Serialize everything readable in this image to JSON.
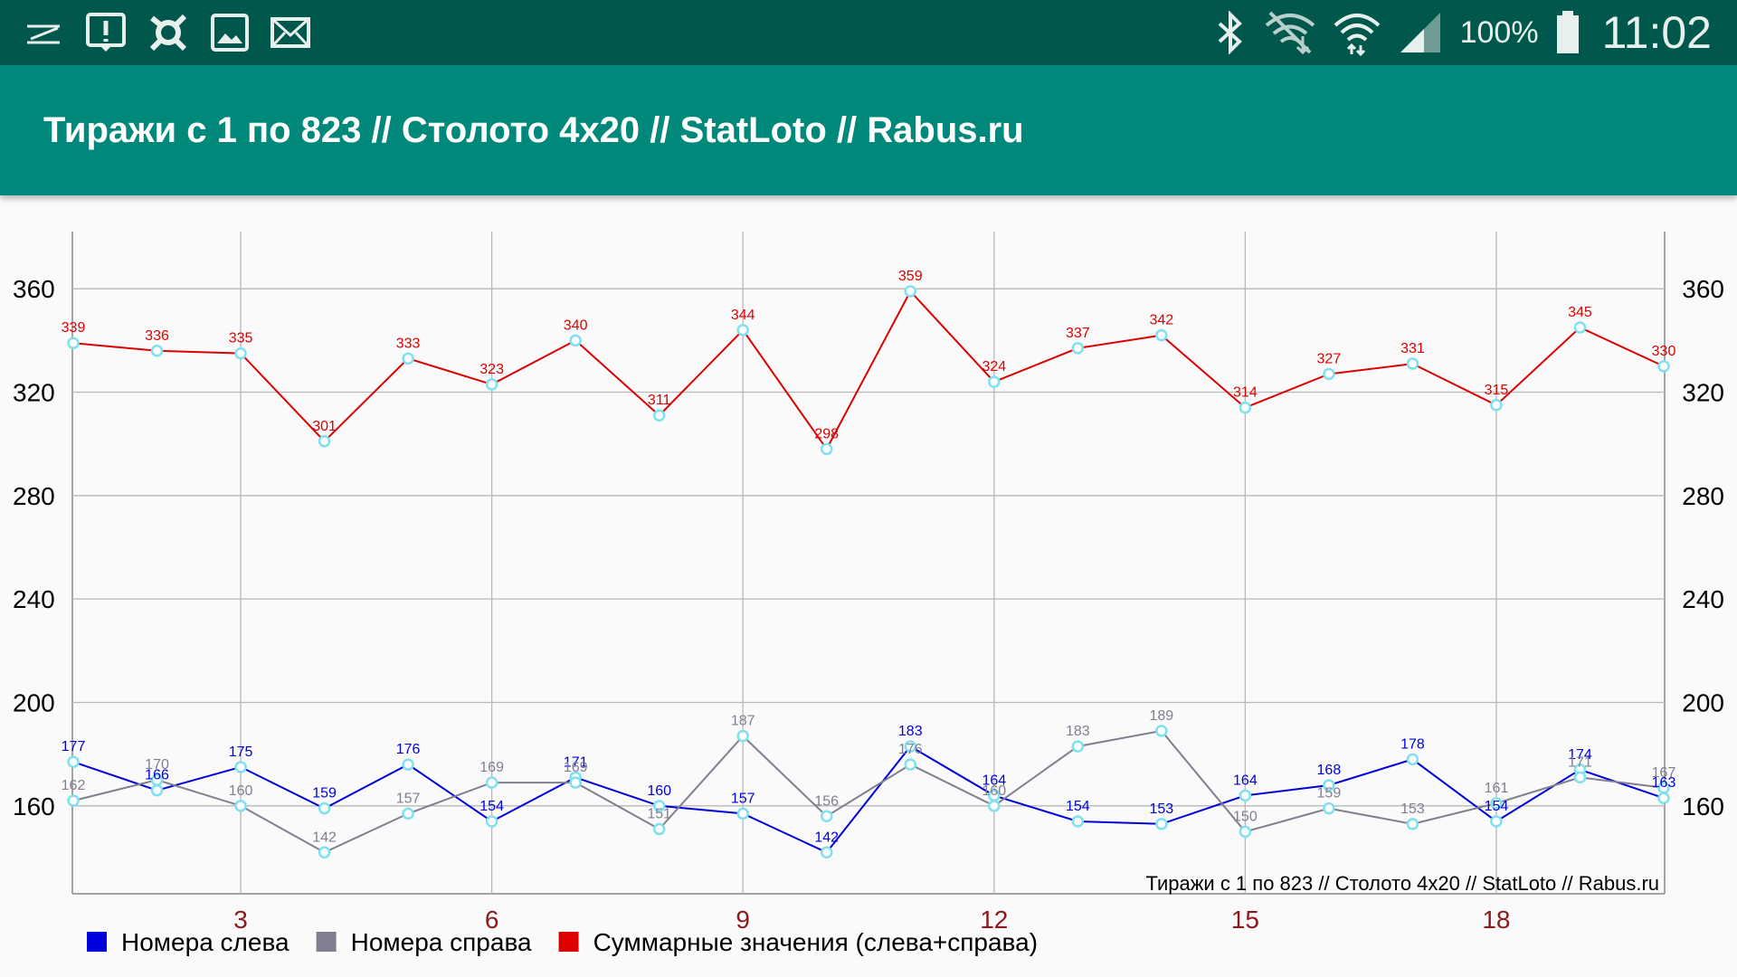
{
  "status_bar": {
    "left_icons": [
      "notes-icon",
      "alert-icon",
      "settings-icon",
      "image-icon",
      "mail-icon"
    ],
    "right_icons": [
      "bluetooth-icon",
      "wifi-off-icon",
      "wifi-icon",
      "signal-icon"
    ],
    "battery": "100%",
    "time": "11:02"
  },
  "app_bar": {
    "title": "Тиражи с 1 по 823 // Столото 4x20 // StatLoto // Rabus.ru"
  },
  "chart_data": {
    "type": "line",
    "x": [
      1,
      2,
      3,
      4,
      5,
      6,
      7,
      8,
      9,
      10,
      11,
      12,
      13,
      14,
      15,
      16,
      17,
      18,
      19,
      20
    ],
    "x_ticks": [
      3,
      6,
      9,
      12,
      15,
      18
    ],
    "y_ticks": [
      160,
      200,
      240,
      280,
      320,
      360
    ],
    "ylim": [
      126,
      380
    ],
    "xlim": [
      1,
      20
    ],
    "watermark": "Тиражи с 1 по 823 // Столото 4x20 // StatLoto // Rabus.ru",
    "grid": true,
    "legend_position": "bottom-left",
    "series": [
      {
        "name": "Номера слева",
        "color": "#0000dd",
        "values": [
          177,
          166,
          175,
          159,
          176,
          154,
          171,
          160,
          157,
          142,
          183,
          164,
          154,
          153,
          164,
          168,
          178,
          154,
          174,
          163
        ]
      },
      {
        "name": "Номера справа",
        "color": "#7f7f8f",
        "values": [
          162,
          170,
          160,
          142,
          157,
          169,
          169,
          151,
          187,
          156,
          176,
          160,
          183,
          189,
          150,
          159,
          153,
          161,
          171,
          167
        ]
      },
      {
        "name": "Суммарные значения (слева+справа)",
        "color": "#dd0000",
        "values": [
          339,
          336,
          335,
          301,
          333,
          323,
          340,
          311,
          344,
          298,
          359,
          324,
          337,
          342,
          314,
          327,
          331,
          315,
          345,
          330
        ]
      }
    ],
    "marker_color": "#7fe0f0",
    "tick_label_color": "#000000",
    "x_tick_label_color": "#8b1a1a"
  }
}
